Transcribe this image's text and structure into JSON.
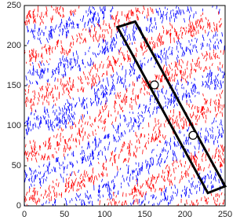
{
  "chart_data": {
    "type": "scatter",
    "xlim": [
      0,
      250
    ],
    "ylim": [
      0,
      250
    ],
    "xticks": [
      0,
      50,
      100,
      150,
      200,
      250
    ],
    "yticks": [
      0,
      50,
      100,
      150,
      200,
      250
    ],
    "series": [
      {
        "color": "#ffffff",
        "x": [
          162,
          210
        ],
        "values": [
          151,
          88
        ]
      }
    ],
    "box": {
      "color": "#000000",
      "x": [
        116,
        138,
        250,
        228.5
      ],
      "y": [
        223,
        230,
        24.5,
        16
      ]
    }
  }
}
